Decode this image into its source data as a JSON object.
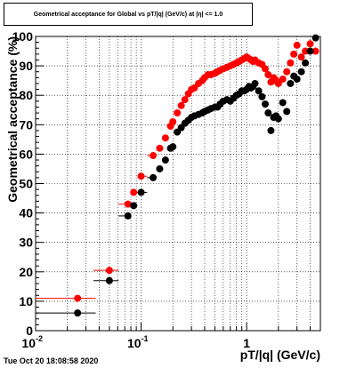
{
  "title": "Geometrical acceptance for Global vs pT/|q| (GeV/c) at |η| <= 1.0",
  "timestamp": "Tue Oct 20 18:08:58 2020",
  "colors": {
    "series_red": "#ff0000",
    "series_black": "#000000",
    "grid": "#000000"
  },
  "chart_data": {
    "type": "scatter",
    "title": "Geometrical acceptance for Global vs pT/|q| (GeV/c) at |η| <= 1.0",
    "xlabel": "pT/|q| (GeV/c)",
    "ylabel": "Geometrical acceptance (%)",
    "xscale": "log",
    "xlim": [
      0.01,
      5
    ],
    "ylim": [
      0,
      100
    ],
    "x_tick_labels": [
      {
        "value": 0.01,
        "base": "10",
        "exp": "-2"
      },
      {
        "value": 0.1,
        "base": "10",
        "exp": "-1"
      },
      {
        "value": 1,
        "base": "1",
        "exp": ""
      }
    ],
    "y_ticks": [
      0,
      10,
      20,
      30,
      40,
      50,
      60,
      70,
      80,
      90,
      100
    ],
    "grid": true,
    "series": [
      {
        "color": "#ff0000",
        "points": [
          [
            0.025,
            11
          ],
          [
            0.05,
            20.5
          ],
          [
            0.075,
            43
          ],
          [
            0.085,
            47
          ],
          [
            0.1,
            52.5
          ],
          [
            0.13,
            59.5
          ],
          [
            0.15,
            62
          ],
          [
            0.17,
            65.5
          ],
          [
            0.19,
            69.5
          ],
          [
            0.2,
            71
          ],
          [
            0.22,
            74
          ],
          [
            0.24,
            76.5
          ],
          [
            0.26,
            78.5
          ],
          [
            0.28,
            80.5
          ],
          [
            0.3,
            82
          ],
          [
            0.32,
            82.5
          ],
          [
            0.35,
            84
          ],
          [
            0.38,
            85
          ],
          [
            0.4,
            86
          ],
          [
            0.43,
            87
          ],
          [
            0.46,
            87
          ],
          [
            0.5,
            87.5
          ],
          [
            0.53,
            88
          ],
          [
            0.56,
            88.5
          ],
          [
            0.6,
            89
          ],
          [
            0.65,
            89.5
          ],
          [
            0.7,
            90
          ],
          [
            0.75,
            90.5
          ],
          [
            0.8,
            91
          ],
          [
            0.85,
            91.5
          ],
          [
            0.9,
            92
          ],
          [
            0.95,
            92.5
          ],
          [
            1.0,
            93
          ],
          [
            1.05,
            92.5
          ],
          [
            1.1,
            92
          ],
          [
            1.15,
            91.5
          ],
          [
            1.2,
            92
          ],
          [
            1.3,
            91
          ],
          [
            1.4,
            90.5
          ],
          [
            1.5,
            89
          ],
          [
            1.6,
            87
          ],
          [
            1.7,
            84.5
          ],
          [
            1.8,
            86
          ],
          [
            1.9,
            85
          ],
          [
            2.0,
            84
          ],
          [
            2.2,
            85.5
          ],
          [
            2.4,
            88
          ],
          [
            2.6,
            91
          ],
          [
            2.8,
            94
          ],
          [
            3.0,
            97
          ],
          [
            3.3,
            93
          ],
          [
            3.6,
            95
          ],
          [
            4.0,
            97.5
          ],
          [
            4.5,
            95
          ]
        ]
      },
      {
        "color": "#000000",
        "points": [
          [
            0.025,
            6
          ],
          [
            0.05,
            17
          ],
          [
            0.075,
            39
          ],
          [
            0.085,
            42.5
          ],
          [
            0.1,
            47
          ],
          [
            0.13,
            52
          ],
          [
            0.15,
            55
          ],
          [
            0.17,
            58
          ],
          [
            0.19,
            62
          ],
          [
            0.2,
            62.5
          ],
          [
            0.22,
            67.5
          ],
          [
            0.24,
            69
          ],
          [
            0.26,
            70.5
          ],
          [
            0.28,
            71.5
          ],
          [
            0.3,
            72.5
          ],
          [
            0.32,
            73
          ],
          [
            0.35,
            73.5
          ],
          [
            0.38,
            74
          ],
          [
            0.4,
            74.5
          ],
          [
            0.43,
            75
          ],
          [
            0.46,
            75.5
          ],
          [
            0.5,
            76
          ],
          [
            0.53,
            76
          ],
          [
            0.56,
            77
          ],
          [
            0.6,
            78
          ],
          [
            0.65,
            78.5
          ],
          [
            0.7,
            78
          ],
          [
            0.75,
            79
          ],
          [
            0.8,
            80
          ],
          [
            0.85,
            80.5
          ],
          [
            0.9,
            81.5
          ],
          [
            0.95,
            81.5
          ],
          [
            1.0,
            82
          ],
          [
            1.05,
            83
          ],
          [
            1.1,
            82.5
          ],
          [
            1.15,
            83
          ],
          [
            1.2,
            84
          ],
          [
            1.3,
            81.5
          ],
          [
            1.4,
            79.5
          ],
          [
            1.5,
            77
          ],
          [
            1.6,
            74
          ],
          [
            1.7,
            68
          ],
          [
            1.8,
            72.5
          ],
          [
            1.9,
            73
          ],
          [
            2.0,
            72
          ],
          [
            2.2,
            77.5
          ],
          [
            2.4,
            74.5
          ],
          [
            2.6,
            84
          ],
          [
            2.8,
            86.5
          ],
          [
            3.0,
            85.5
          ],
          [
            3.3,
            88
          ],
          [
            3.6,
            91
          ],
          [
            4.0,
            95
          ],
          [
            4.5,
            99.5
          ]
        ]
      }
    ]
  }
}
